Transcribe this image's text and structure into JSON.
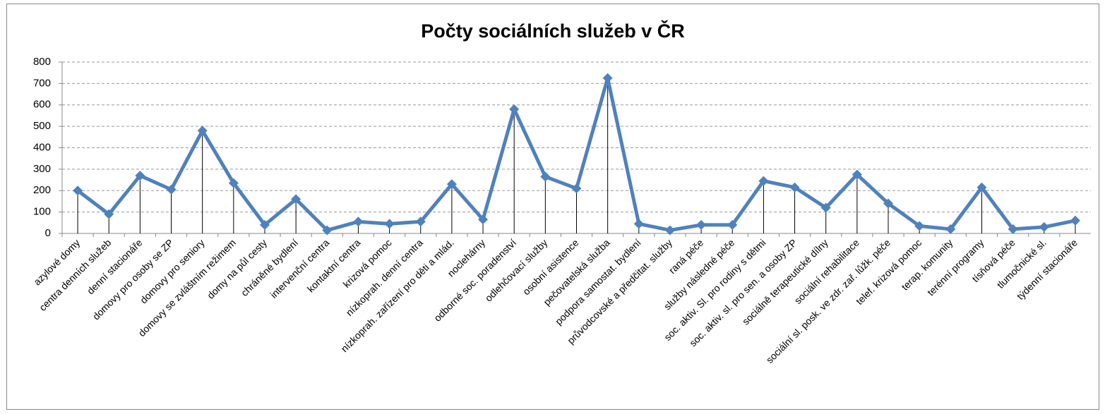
{
  "chart_data": {
    "type": "line",
    "title": "Počty sociálních služeb v ČR",
    "categories": [
      "azylové domy",
      "centra denních služeb",
      "denní stacionáře",
      "domovy pro osoby  se ZP",
      "domovy pro seniory",
      "domovy se zvláštním režimem",
      "domy na půl cesty",
      "chráněné bydlení",
      "intervenční centra",
      "kontaktní centra",
      "krizová pomoc",
      "nízkoprah. denní centra",
      "nízkoprah. zařízení pro děti a mlád.",
      "noclehárny",
      "odborné soc. poradenství",
      "odlehčovací služby",
      "osobní asistence",
      "pečovatelská služba",
      "podpora samostat. bydlení",
      "průvodcovské a předčitat. služby",
      "raná péče",
      "služby následné péče",
      "soc. aktiv. Sl. pro rodiny s dětmi",
      "soc. aktiv. sl. pro sen. a osoby ZP",
      "sociálně terapeutické dílny",
      "sociální rehabilitace",
      "sociální sl. posk. ve zdr. zař. lůžk. péče",
      "telef. krizová pomoc",
      "terap. komunity",
      "terénní programy",
      "tísňová péče",
      "tlumočnické sl.",
      "týdenní stacionáře"
    ],
    "values": [
      200,
      90,
      270,
      205,
      480,
      235,
      40,
      160,
      15,
      55,
      45,
      55,
      230,
      65,
      580,
      265,
      210,
      725,
      45,
      15,
      40,
      40,
      245,
      215,
      120,
      275,
      140,
      35,
      20,
      215,
      20,
      30,
      60
    ],
    "color": "#4f81bd",
    "ylim": [
      0,
      800
    ],
    "yticks": [
      0,
      100,
      200,
      300,
      400,
      500,
      600,
      700,
      800
    ],
    "grid": true
  }
}
